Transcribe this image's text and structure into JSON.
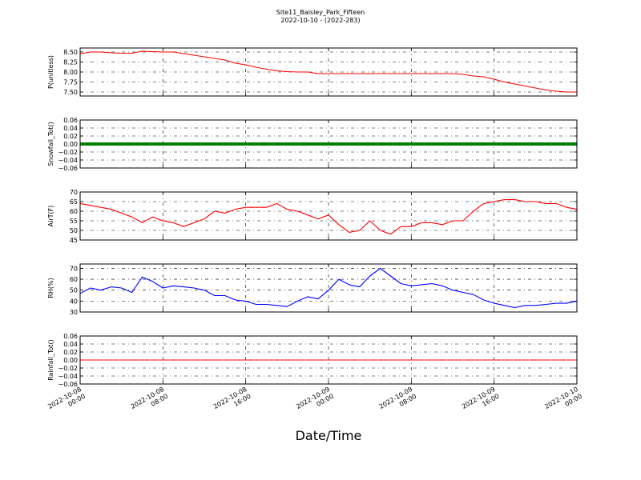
{
  "figure": {
    "title_line1": "Site11_Baisley_Park_Fifteen",
    "title_line2": "2022-10-10 - (2022-283)",
    "xlabel": "Date/Time",
    "x_ticks": [
      {
        "line1": "2022-10-08",
        "line2": "00:00"
      },
      {
        "line1": "2022-10-08",
        "line2": "08:00"
      },
      {
        "line1": "2022-10-08",
        "line2": "16:00"
      },
      {
        "line1": "2022-10-09",
        "line2": "00:00"
      },
      {
        "line1": "2022-10-09",
        "line2": "08:00"
      },
      {
        "line1": "2022-10-09",
        "line2": "16:00"
      },
      {
        "line1": "2022-10-10",
        "line2": "00:00"
      }
    ]
  },
  "chart_data": [
    {
      "type": "line",
      "ylabel": "P(unitless)",
      "color": "#ff0000",
      "ylim": [
        7.4,
        8.6
      ],
      "yticks": [
        7.5,
        7.75,
        8.0,
        8.25,
        8.5
      ],
      "ytick_labels": [
        "7.50",
        "7.75",
        "8.00",
        "8.25",
        "8.50"
      ],
      "grid": true,
      "x_start": "2022-10-08 00:00",
      "x_step_minutes": 60,
      "values": [
        8.45,
        8.5,
        8.5,
        8.48,
        8.47,
        8.47,
        8.52,
        8.51,
        8.5,
        8.5,
        8.46,
        8.42,
        8.38,
        8.34,
        8.3,
        8.22,
        8.18,
        8.12,
        8.07,
        8.03,
        8.01,
        8.0,
        8.0,
        7.96,
        7.96,
        7.96,
        7.96,
        7.96,
        7.96,
        7.96,
        7.96,
        7.96,
        7.96,
        7.96,
        7.96,
        7.96,
        7.96,
        7.94,
        7.9,
        7.88,
        7.82,
        7.75,
        7.7,
        7.65,
        7.6,
        7.55,
        7.52,
        7.5,
        7.5
      ]
    },
    {
      "type": "line",
      "ylabel": "Snowfall_Tot()",
      "color": "#008000",
      "ylim": [
        -0.06,
        0.06
      ],
      "yticks": [
        -0.06,
        -0.04,
        -0.02,
        0.0,
        0.02,
        0.04,
        0.06
      ],
      "ytick_labels": [
        "−0.06",
        "−0.04",
        "−0.02",
        "0.00",
        "0.02",
        "0.04",
        "0.06"
      ],
      "grid": true,
      "x_start": "2022-10-08 00:00",
      "x_step_minutes": 60,
      "values": [
        0,
        0,
        0,
        0,
        0,
        0,
        0,
        0,
        0,
        0,
        0,
        0,
        0,
        0,
        0,
        0,
        0,
        0,
        0,
        0,
        0,
        0,
        0,
        0,
        0,
        0,
        0,
        0,
        0,
        0,
        0,
        0,
        0,
        0,
        0,
        0,
        0,
        0,
        0,
        0,
        0,
        0,
        0,
        0,
        0,
        0,
        0,
        0,
        0
      ]
    },
    {
      "type": "line",
      "ylabel": "AirT(F)",
      "color": "#ff0000",
      "ylim": [
        45,
        70
      ],
      "yticks": [
        45,
        50,
        55,
        60,
        65,
        70
      ],
      "ytick_labels": [
        "45",
        "50",
        "55",
        "60",
        "65",
        "70"
      ],
      "grid": true,
      "x_start": "2022-10-08 00:00",
      "x_step_minutes": 60,
      "values": [
        64,
        63,
        62,
        61,
        59,
        57,
        54,
        57,
        55,
        54,
        52,
        54,
        56,
        60,
        59,
        61,
        62,
        62,
        62,
        64,
        61,
        60,
        58,
        56,
        58,
        53,
        49,
        50,
        55,
        50,
        48,
        52,
        52,
        54,
        54,
        53,
        55,
        55,
        60,
        64,
        65,
        66,
        66,
        65,
        65,
        64,
        64,
        62,
        61
      ]
    },
    {
      "type": "line",
      "ylabel": "RH(%)",
      "color": "#0000ff",
      "ylim": [
        30,
        74
      ],
      "yticks": [
        30,
        40,
        50,
        60,
        70
      ],
      "ytick_labels": [
        "30",
        "40",
        "50",
        "60",
        "70"
      ],
      "grid": true,
      "x_start": "2022-10-08 00:00",
      "x_step_minutes": 60,
      "values": [
        47,
        52,
        50,
        53,
        52,
        48,
        62,
        58,
        52,
        54,
        53,
        52,
        50,
        45,
        45,
        41,
        40,
        37,
        37,
        36,
        35,
        40,
        44,
        42,
        50,
        60,
        55,
        53,
        63,
        70,
        63,
        56,
        54,
        55,
        56,
        54,
        50,
        48,
        46,
        41,
        38,
        36,
        34,
        36,
        36,
        37,
        38,
        38,
        40
      ]
    },
    {
      "type": "line",
      "ylabel": "Rainfall_Tot()",
      "color": "#ff0000",
      "ylim": [
        -0.06,
        0.06
      ],
      "yticks": [
        -0.06,
        -0.04,
        -0.02,
        0.0,
        0.02,
        0.04,
        0.06
      ],
      "ytick_labels": [
        "−0.06",
        "−0.04",
        "−0.02",
        "0.00",
        "0.02",
        "0.04",
        "0.06"
      ],
      "grid": true,
      "x_start": "2022-10-08 00:00",
      "x_step_minutes": 60,
      "values": [
        0,
        0,
        0,
        0,
        0,
        0,
        0,
        0,
        0,
        0,
        0,
        0,
        0,
        0,
        0,
        0,
        0,
        0,
        0,
        0,
        0,
        0,
        0,
        0,
        0,
        0,
        0,
        0,
        0,
        0,
        0,
        0,
        0,
        0,
        0,
        0,
        0,
        0,
        0,
        0,
        0,
        0,
        0,
        0,
        0,
        0,
        0,
        0,
        0
      ]
    }
  ]
}
